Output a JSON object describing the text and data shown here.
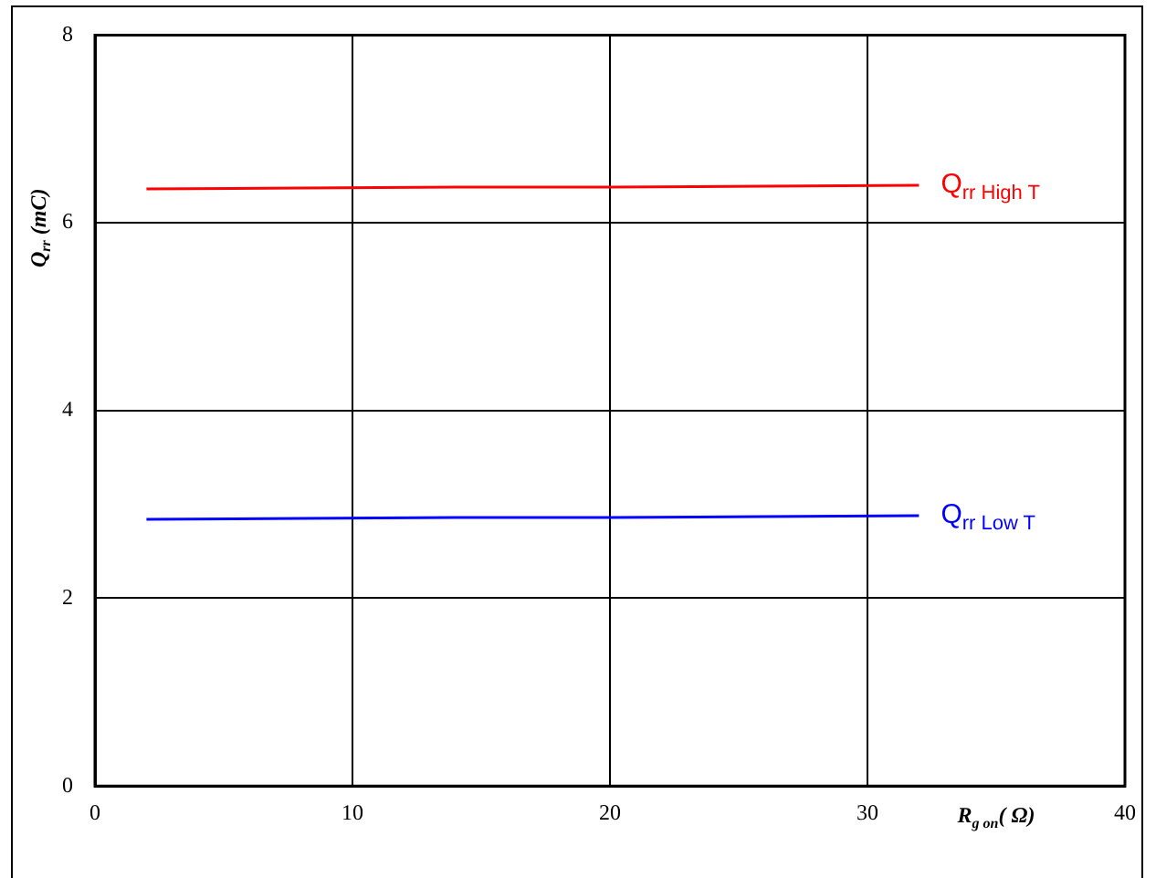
{
  "chart_data": {
    "type": "line",
    "xlabel": "R$_{g on}$( Ω)",
    "ylabel": "Q$_{rr}$ (mC)",
    "x": [
      2,
      8,
      14,
      20,
      26,
      32
    ],
    "series": [
      {
        "name": "Q$_{rr High T}$",
        "color": "#ff0000",
        "values": [
          6.36,
          6.37,
          6.38,
          6.38,
          6.39,
          6.4
        ]
      },
      {
        "name": "Q$_{rr Low T}$",
        "color": "#0000ff",
        "values": [
          2.84,
          2.85,
          2.86,
          2.86,
          2.87,
          2.88
        ]
      }
    ],
    "xlim": [
      0,
      40
    ],
    "xticks": [
      0,
      10,
      20,
      30,
      40
    ],
    "ylim": [
      0,
      8
    ],
    "yticks": [
      0,
      2,
      4,
      6,
      8
    ],
    "grid": true,
    "legend": false,
    "marker": "none",
    "line_style": "solid"
  }
}
